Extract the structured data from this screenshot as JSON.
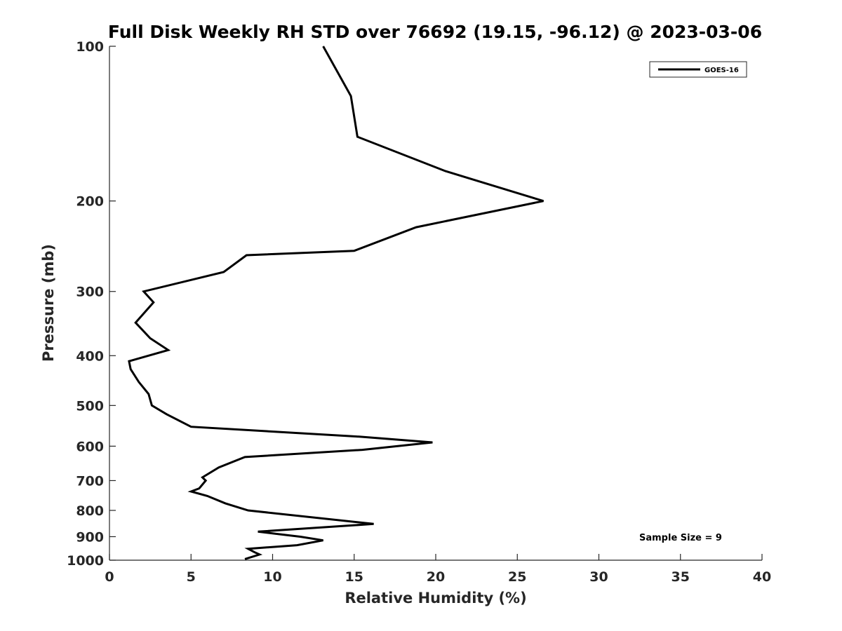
{
  "chart_data": {
    "type": "line",
    "title": "Full Disk Weekly RH STD over 76692 (19.15, -96.12) @ 2023-03-06",
    "xlabel": "Relative Humidity (%)",
    "ylabel": "Pressure (mb)",
    "xlim": [
      0,
      40
    ],
    "ylim": [
      100,
      1000
    ],
    "yscale": "log",
    "y_reversed": true,
    "x_ticks": [
      "0",
      "5",
      "10",
      "15",
      "20",
      "25",
      "30",
      "35",
      "40"
    ],
    "y_ticks": [
      "100",
      "200",
      "300",
      "400",
      "500",
      "600",
      "700",
      "800",
      "900",
      "1000"
    ],
    "grid": false,
    "legend_position": "top-right",
    "annotation": "Sample Size = 9",
    "series": [
      {
        "name": "GOES-16",
        "color": "#000000",
        "x": [
          13.1,
          14.8,
          15.2,
          20.6,
          26.6,
          18.8,
          15.0,
          8.4,
          7.0,
          2.1,
          2.7,
          1.6,
          2.5,
          3.6,
          1.2,
          1.3,
          1.8,
          2.4,
          2.6,
          3.5,
          5.0,
          15.3,
          19.8,
          15.5,
          8.3,
          6.7,
          5.7,
          5.9,
          5.5,
          5.0,
          6.0,
          7.1,
          8.5,
          16.2,
          9.1,
          11.7,
          13.1,
          11.5,
          8.5,
          8.9,
          9.2,
          8.3
        ],
        "y": [
          100,
          125,
          150,
          175,
          200,
          225,
          250,
          255,
          275,
          300,
          315,
          345,
          370,
          390,
          410,
          425,
          450,
          475,
          500,
          520,
          550,
          575,
          590,
          610,
          630,
          660,
          690,
          700,
          725,
          735,
          750,
          775,
          800,
          850,
          880,
          900,
          915,
          935,
          950,
          965,
          975,
          995
        ]
      }
    ]
  }
}
